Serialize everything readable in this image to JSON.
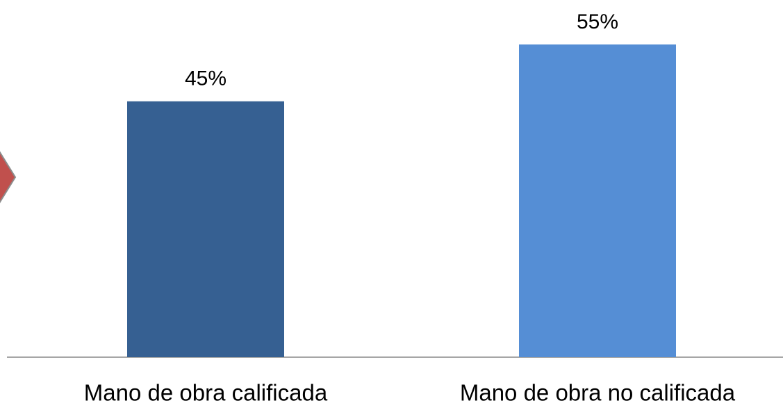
{
  "chart_data": {
    "type": "bar",
    "categories": [
      "Mano de obra calificada",
      "Mano de obra no calificada"
    ],
    "values": [
      45,
      55
    ],
    "value_labels": [
      "45%",
      "55%"
    ],
    "colors": [
      "#366092",
      "#558ed5"
    ]
  }
}
